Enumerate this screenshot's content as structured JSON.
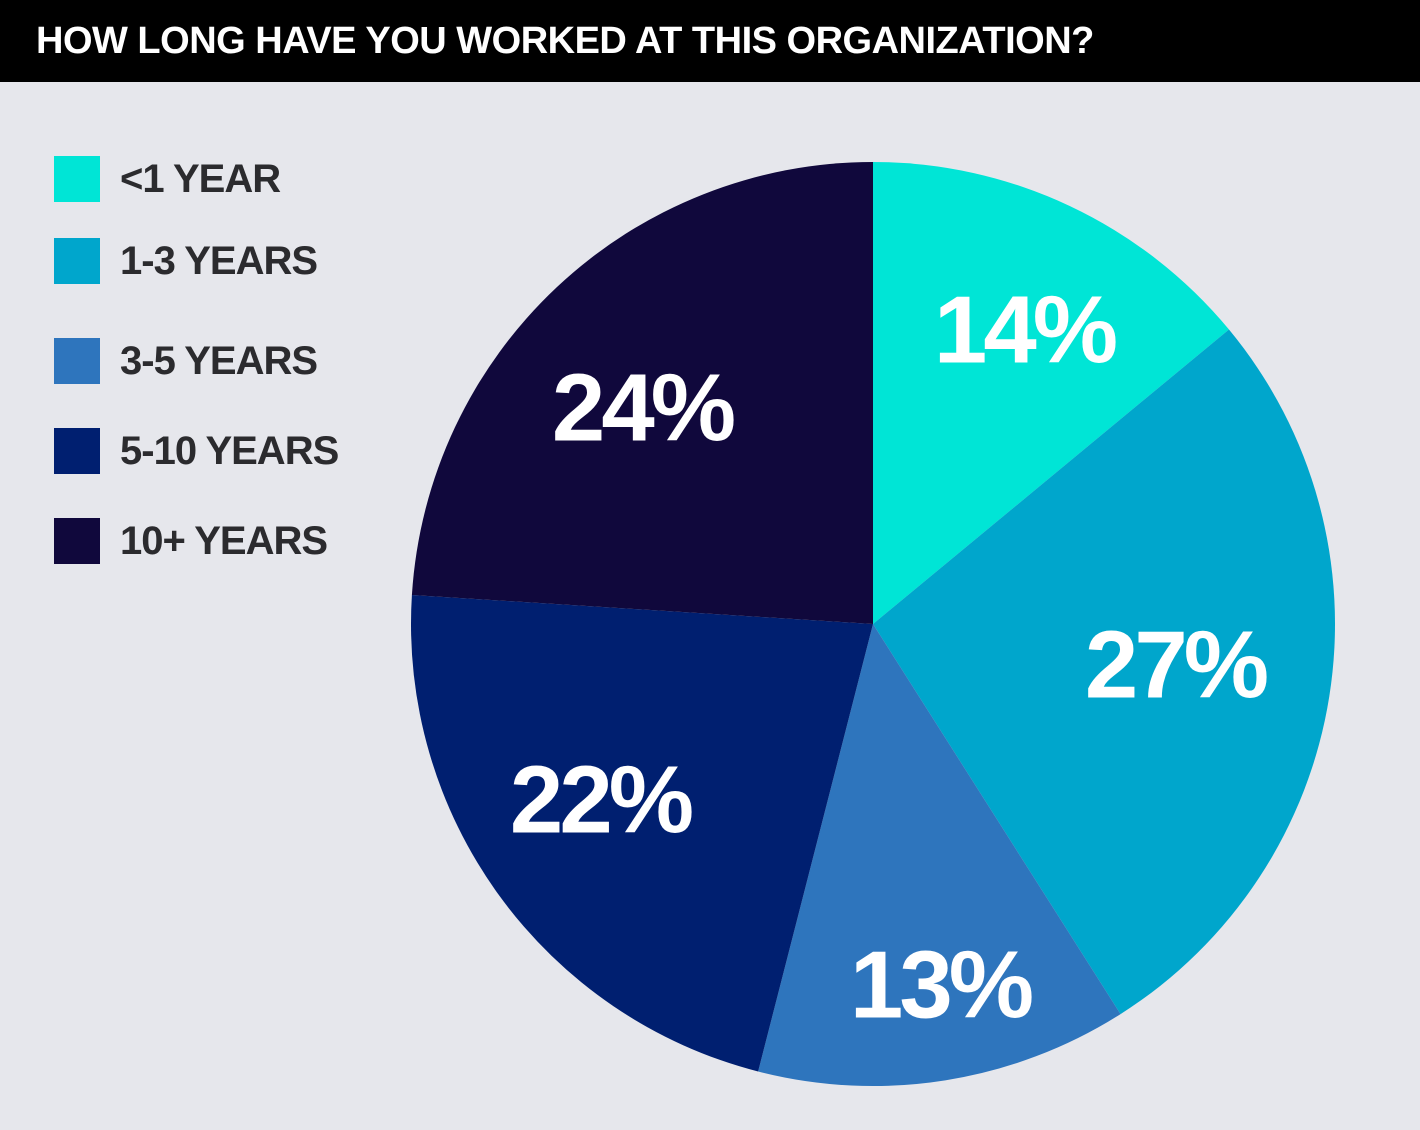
{
  "chart_data": {
    "type": "pie",
    "title": "HOW LONG HAVE YOU WORKED AT THIS ORGANIZATION?",
    "legend_position": "left",
    "slices": [
      {
        "label": "<1 YEAR",
        "value": 14,
        "display": "14%",
        "color": "#00e5d6"
      },
      {
        "label": "1-3 YEARS",
        "value": 27,
        "display": "27%",
        "color": "#00a6cc"
      },
      {
        "label": "3-5 YEARS",
        "value": 13,
        "display": "13%",
        "color": "#2e75bd"
      },
      {
        "label": "5-10 YEARS",
        "value": 22,
        "display": "22%",
        "color": "#001f70"
      },
      {
        "label": "10+ YEARS",
        "value": 24,
        "display": "24%",
        "color": "#10083c"
      }
    ]
  }
}
